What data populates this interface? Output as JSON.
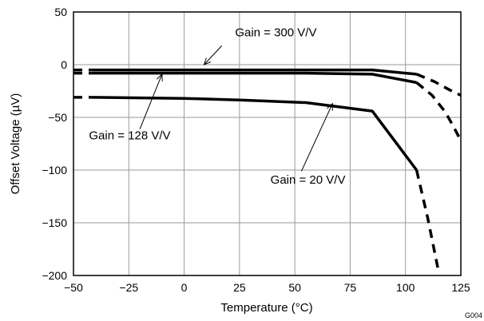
{
  "chart_data": {
    "type": "line",
    "xlabel": "Temperature (°C)",
    "ylabel": "Offset Voltage (µV)",
    "xlim": [
      -50,
      125
    ],
    "ylim": [
      -200,
      50
    ],
    "x_ticks": [
      -50,
      -25,
      0,
      25,
      50,
      75,
      100,
      125
    ],
    "y_ticks": [
      -200,
      -150,
      -100,
      -50,
      0,
      50
    ],
    "x_tick_labels": [
      "−50",
      "−25",
      "0",
      "25",
      "50",
      "75",
      "100",
      "125"
    ],
    "y_tick_labels": [
      "−200",
      "−150",
      "−100",
      "−50",
      "0",
      "50"
    ],
    "grid": true,
    "series": [
      {
        "name": "Gain = 300 V/V",
        "solid": [
          [
            -42,
            -5
          ],
          [
            0,
            -5
          ],
          [
            25,
            -5
          ],
          [
            55,
            -5
          ],
          [
            85,
            -5
          ],
          [
            105,
            -9
          ]
        ],
        "dashed_before": [
          [
            -50,
            -5
          ],
          [
            -42,
            -5
          ]
        ],
        "dashed_after": [
          [
            105,
            -9
          ],
          [
            113,
            -16
          ],
          [
            120,
            -24
          ],
          [
            125,
            -29
          ]
        ]
      },
      {
        "name": "Gain = 128 V/V",
        "solid": [
          [
            -42,
            -8
          ],
          [
            0,
            -8
          ],
          [
            25,
            -8
          ],
          [
            55,
            -8
          ],
          [
            85,
            -9
          ],
          [
            105,
            -17
          ]
        ],
        "dashed_before": [
          [
            -50,
            -8
          ],
          [
            -42,
            -8
          ]
        ],
        "dashed_after": [
          [
            105,
            -17
          ],
          [
            112,
            -29
          ],
          [
            118,
            -45
          ],
          [
            122,
            -60
          ],
          [
            125,
            -72
          ]
        ]
      },
      {
        "name": "Gain = 20 V/V",
        "solid": [
          [
            -42,
            -31
          ],
          [
            0,
            -32
          ],
          [
            25,
            -33.5
          ],
          [
            55,
            -36
          ],
          [
            85,
            -44
          ],
          [
            105,
            -100
          ]
        ],
        "dashed_before": [
          [
            -50,
            -31
          ],
          [
            -42,
            -31
          ]
        ],
        "dashed_after": [
          [
            105,
            -100
          ],
          [
            110,
            -145
          ],
          [
            115,
            -197
          ]
        ]
      }
    ],
    "annotations": [
      {
        "text": "Gain = 300 V/V",
        "label_at": [
          23,
          27
        ],
        "arrow_from": [
          17,
          18
        ],
        "arrow_to": [
          9,
          0
        ]
      },
      {
        "text": "Gain = 128 V/V",
        "label_at": [
          -43,
          -71
        ],
        "arrow_from": [
          -20,
          -61
        ],
        "arrow_to": [
          -10,
          -9
        ]
      },
      {
        "text": "Gain = 20 V/V",
        "label_at": [
          39,
          -113
        ],
        "arrow_from": [
          53,
          -101
        ],
        "arrow_to": [
          67,
          -37
        ]
      }
    ],
    "code": "G004"
  }
}
